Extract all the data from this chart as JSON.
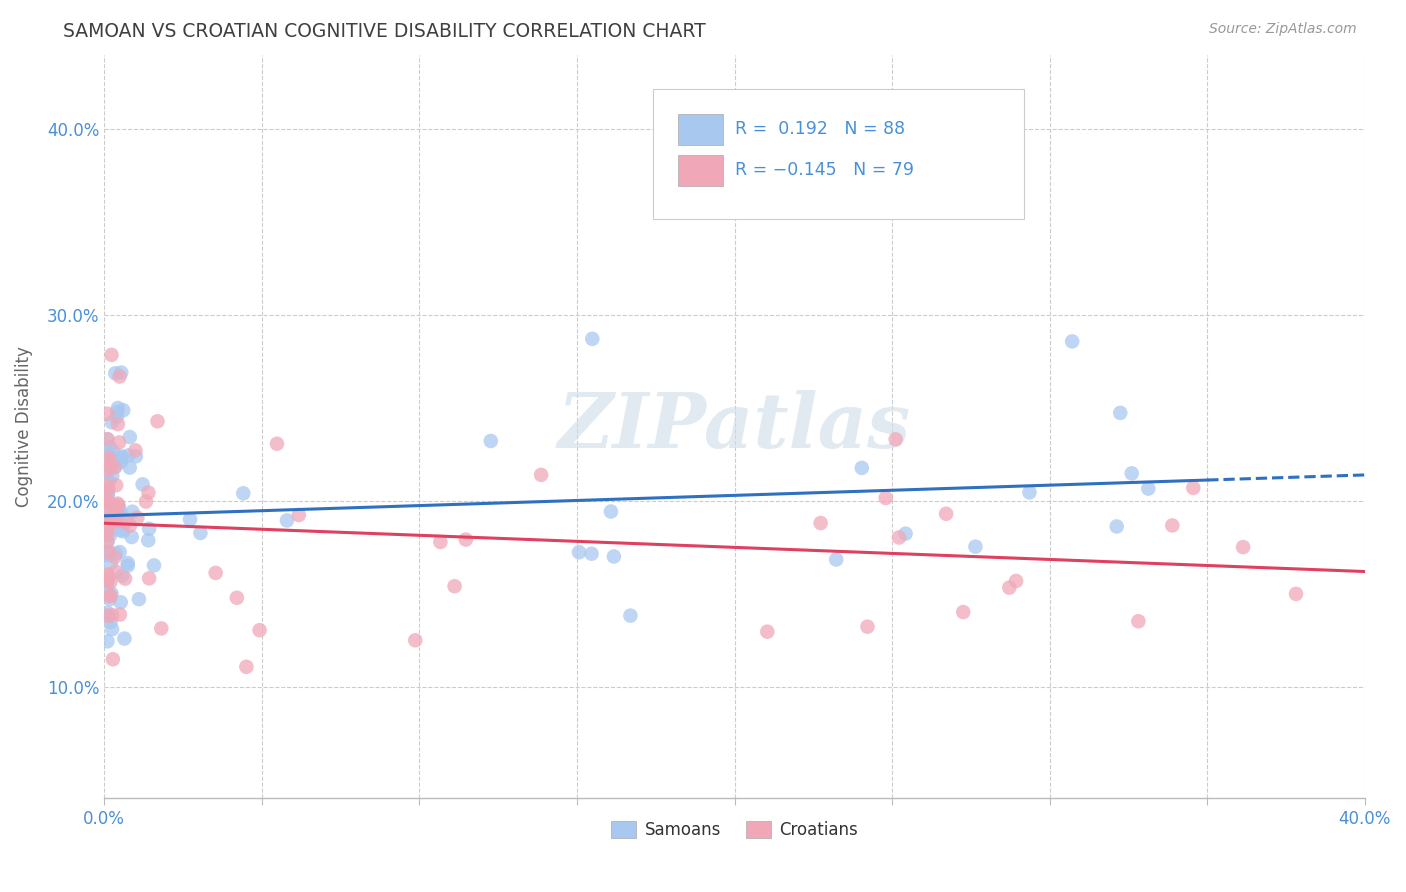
{
  "title": "SAMOAN VS CROATIAN COGNITIVE DISABILITY CORRELATION CHART",
  "source": "Source: ZipAtlas.com",
  "ylabel": "Cognitive Disability",
  "xlim": [
    0.0,
    0.4
  ],
  "ylim": [
    0.04,
    0.44
  ],
  "yticks": [
    0.1,
    0.2,
    0.3,
    0.4
  ],
  "ytick_labels": [
    "10.0%",
    "20.0%",
    "30.0%",
    "40.0%"
  ],
  "xtick_labels": [
    "0.0%",
    "40.0%"
  ],
  "samoan_color": "#a8c8f0",
  "croatian_color": "#f0a8b8",
  "samoan_line_color": "#3070c0",
  "croatian_line_color": "#e04060",
  "legend_text_color": "#4a90d9",
  "legend_label1": "Samoans",
  "legend_label2": "Croatians",
  "watermark": "ZIPatlas",
  "background_color": "#ffffff",
  "grid_color": "#cccccc",
  "title_color": "#404040",
  "axis_label_color": "#4a90d9",
  "samoan_N": 88,
  "croatian_N": 79,
  "samoan_R": 0.192,
  "croatian_R": -0.145,
  "s_intercept": 0.192,
  "s_slope": 0.055,
  "c_intercept": 0.188,
  "c_slope": -0.065
}
